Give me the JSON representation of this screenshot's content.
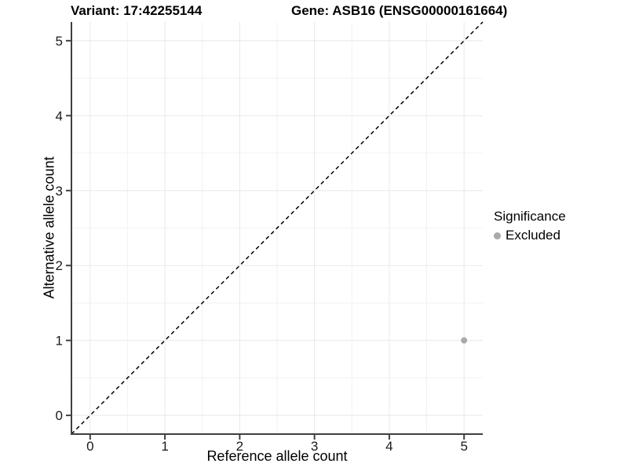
{
  "titles": {
    "variant": "Variant: 17:42255144",
    "gene": "Gene: ASB16 (ENSG00000161664)"
  },
  "legend": {
    "title": "Significance",
    "items": [
      {
        "label": "Excluded",
        "color": "#a9a9a9"
      }
    ]
  },
  "chart_data": {
    "type": "scatter",
    "title": "Variant: 17:42255144 | Gene: ASB16 (ENSG00000161664)",
    "xlabel": "Reference allele count",
    "ylabel": "Alternative allele count",
    "xlim": [
      -0.25,
      5.25
    ],
    "ylim": [
      -0.25,
      5.25
    ],
    "x_ticks": [
      0,
      1,
      2,
      3,
      4,
      5
    ],
    "y_ticks": [
      0,
      1,
      2,
      3,
      4,
      5
    ],
    "x_minor_ticks": [
      0.5,
      1.5,
      2.5,
      3.5,
      4.5
    ],
    "y_minor_ticks": [
      0.5,
      1.5,
      2.5,
      3.5,
      4.5
    ],
    "grid": "major-and-minor",
    "legend_position": "right",
    "reference_line": {
      "kind": "identity-diagonal",
      "equation": "y = x",
      "style": "dashed",
      "color": "#000000"
    },
    "series": [
      {
        "name": "Excluded",
        "color": "#a9a9a9",
        "points": [
          {
            "x": 5,
            "y": 1
          }
        ]
      }
    ]
  },
  "style": {
    "grid_major_color": "#e8e8e8",
    "grid_minor_color": "#f2f2f2",
    "axis_line_color": "#404040",
    "tick_label_color": "#1a1a1a",
    "point_radius": 4,
    "legend_point_color": "#a9a9a9"
  }
}
